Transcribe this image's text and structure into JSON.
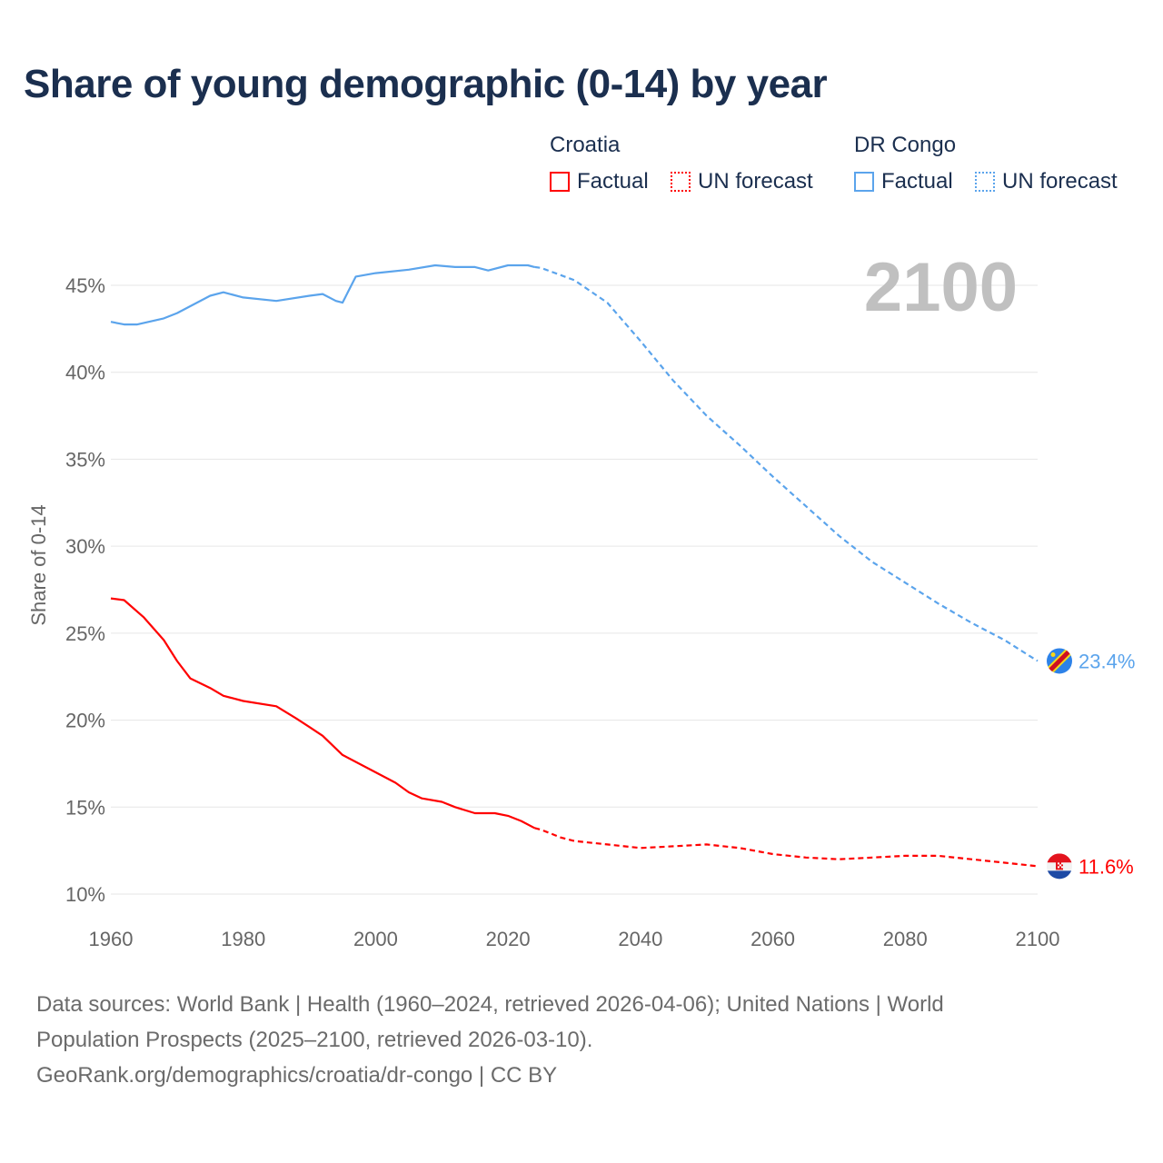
{
  "chart_data": {
    "type": "line",
    "title": "Share of young demographic (0-14) by year",
    "ylabel": "Share of 0-14",
    "xlabel": "",
    "xlim": [
      1960,
      2100
    ],
    "ylim": [
      10,
      47
    ],
    "x_ticks": [
      "1960",
      "1980",
      "2000",
      "2020",
      "2040",
      "2060",
      "2080",
      "2100"
    ],
    "x_tick_values": [
      1960,
      1980,
      2000,
      2020,
      2040,
      2060,
      2080,
      2100
    ],
    "y_ticks": [
      "10%",
      "15%",
      "20%",
      "25%",
      "30%",
      "35%",
      "40%",
      "45%"
    ],
    "y_tick_values": [
      10,
      15,
      20,
      25,
      30,
      35,
      40,
      45
    ],
    "grid": true,
    "year_label": "2100",
    "legend_position": "top-right",
    "series": [
      {
        "name": "Croatia",
        "color": "#ff0000",
        "end_label": "11.6%",
        "factual_label": "Factual",
        "forecast_label": "UN forecast",
        "factual": [
          [
            1960,
            27.0
          ],
          [
            1962,
            26.9
          ],
          [
            1965,
            25.9
          ],
          [
            1968,
            24.6
          ],
          [
            1970,
            23.4
          ],
          [
            1972,
            22.4
          ],
          [
            1975,
            21.85
          ],
          [
            1977,
            21.4
          ],
          [
            1980,
            21.1
          ],
          [
            1985,
            20.8
          ],
          [
            1988,
            20.1
          ],
          [
            1990,
            19.6
          ],
          [
            1992,
            19.1
          ],
          [
            1995,
            18.0
          ],
          [
            2000,
            17.0
          ],
          [
            2003,
            16.4
          ],
          [
            2005,
            15.85
          ],
          [
            2007,
            15.5
          ],
          [
            2010,
            15.3
          ],
          [
            2012,
            15.0
          ],
          [
            2015,
            14.65
          ],
          [
            2018,
            14.65
          ],
          [
            2020,
            14.5
          ],
          [
            2022,
            14.2
          ],
          [
            2024,
            13.8
          ]
        ],
        "forecast": [
          [
            2024,
            13.8
          ],
          [
            2025,
            13.7
          ],
          [
            2028,
            13.25
          ],
          [
            2030,
            13.05
          ],
          [
            2035,
            12.85
          ],
          [
            2040,
            12.65
          ],
          [
            2045,
            12.75
          ],
          [
            2050,
            12.85
          ],
          [
            2055,
            12.65
          ],
          [
            2060,
            12.3
          ],
          [
            2065,
            12.1
          ],
          [
            2070,
            12.0
          ],
          [
            2075,
            12.1
          ],
          [
            2080,
            12.2
          ],
          [
            2085,
            12.2
          ],
          [
            2090,
            12.0
          ],
          [
            2095,
            11.8
          ],
          [
            2100,
            11.6
          ]
        ]
      },
      {
        "name": "DR Congo",
        "color": "#5ba4ec",
        "end_label": "23.4%",
        "factual_label": "Factual",
        "forecast_label": "UN forecast",
        "factual": [
          [
            1960,
            42.9
          ],
          [
            1962,
            42.75
          ],
          [
            1964,
            42.75
          ],
          [
            1968,
            43.1
          ],
          [
            1970,
            43.4
          ],
          [
            1975,
            44.4
          ],
          [
            1977,
            44.6
          ],
          [
            1980,
            44.3
          ],
          [
            1985,
            44.1
          ],
          [
            1990,
            44.4
          ],
          [
            1992,
            44.5
          ],
          [
            1994,
            44.1
          ],
          [
            1995,
            44.0
          ],
          [
            1997,
            45.5
          ],
          [
            2000,
            45.7
          ],
          [
            2005,
            45.9
          ],
          [
            2009,
            46.15
          ],
          [
            2012,
            46.05
          ],
          [
            2015,
            46.05
          ],
          [
            2017,
            45.85
          ],
          [
            2020,
            46.15
          ],
          [
            2023,
            46.15
          ],
          [
            2024,
            46.05
          ]
        ],
        "forecast": [
          [
            2024,
            46.05
          ],
          [
            2025,
            46.0
          ],
          [
            2030,
            45.3
          ],
          [
            2035,
            44.0
          ],
          [
            2040,
            41.8
          ],
          [
            2045,
            39.5
          ],
          [
            2050,
            37.5
          ],
          [
            2055,
            35.8
          ],
          [
            2060,
            34.0
          ],
          [
            2065,
            32.3
          ],
          [
            2070,
            30.6
          ],
          [
            2075,
            29.1
          ],
          [
            2080,
            27.9
          ],
          [
            2085,
            26.7
          ],
          [
            2090,
            25.6
          ],
          [
            2095,
            24.6
          ],
          [
            2100,
            23.4
          ]
        ]
      }
    ]
  },
  "source": {
    "line1": "Data sources: World Bank | Health (1960–2024, retrieved 2026-04-06); United Nations | World",
    "line2": "Population Prospects (2025–2100, retrieved 2026-03-10).",
    "line3": "GeoRank.org/demographics/croatia/dr-congo | CC BY"
  }
}
